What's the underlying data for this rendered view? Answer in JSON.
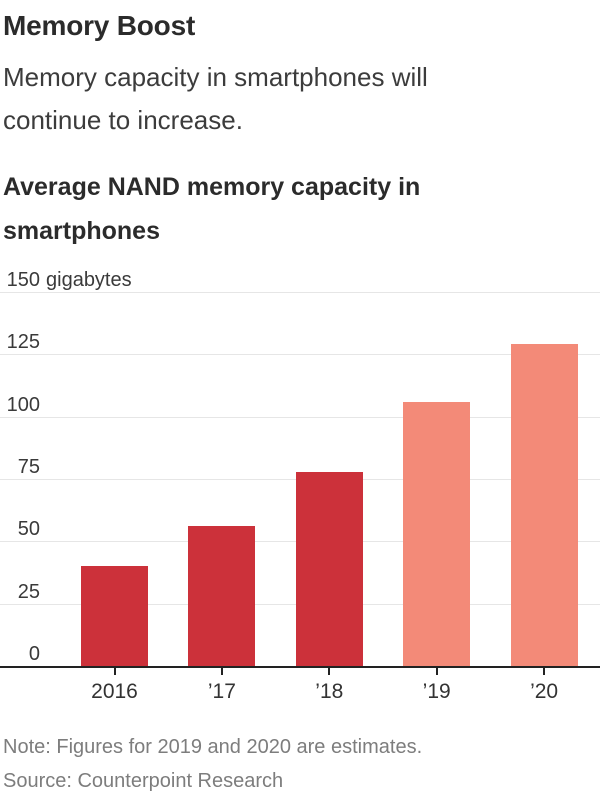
{
  "header": {
    "title": "Memory Boost",
    "subtitle": "Memory capacity in smartphones will continue to increase."
  },
  "chart_data": {
    "type": "bar",
    "title": "Average NAND memory capacity in smartphones",
    "categories": [
      "2016",
      "’17",
      "’18",
      "’19",
      "’20"
    ],
    "values": [
      40,
      56,
      78,
      106,
      129
    ],
    "unit": "gigabytes",
    "ylabel": "gigabytes",
    "xlabel": "",
    "ylim": [
      0,
      150
    ],
    "yticks": [
      0,
      25,
      50,
      75,
      100,
      125,
      150
    ],
    "grid": true,
    "legend": "none",
    "bar_colors": [
      "#cc313a",
      "#cc313a",
      "#cc313a",
      "#f38a78",
      "#f38a78"
    ],
    "colors": {
      "actual": "#cc313a",
      "estimate": "#f38a78",
      "gridline": "#e6e6e6",
      "axis": "#222222"
    }
  },
  "footer": {
    "note": "Note: Figures for 2019 and 2020 are estimates.",
    "source": "Source: Counterpoint Research"
  }
}
